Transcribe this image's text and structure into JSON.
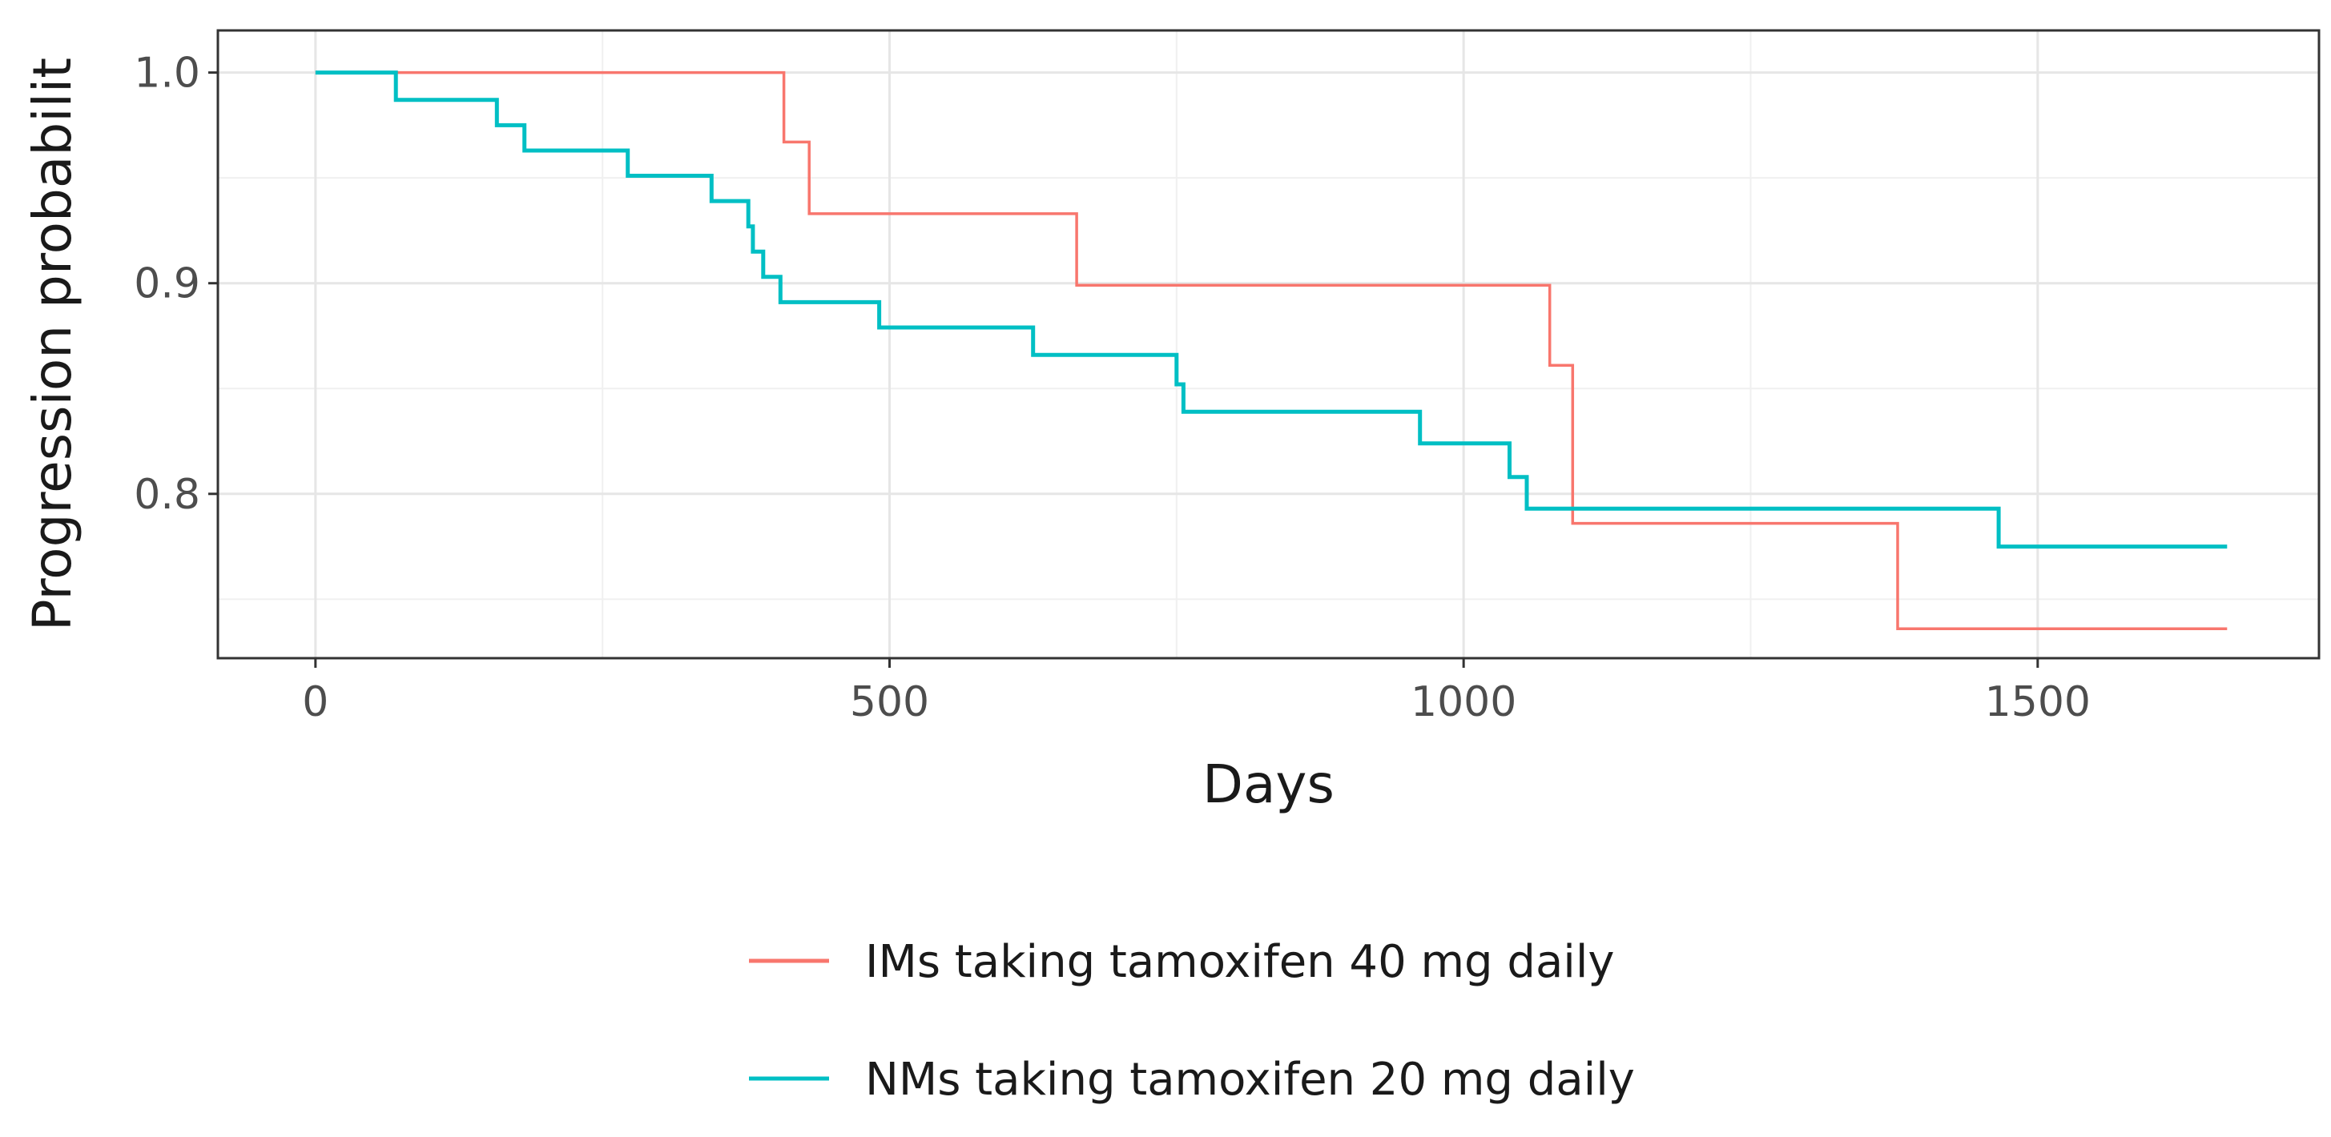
{
  "chart_data": {
    "type": "line",
    "subtype": "step",
    "title": "",
    "xlabel": "Days",
    "ylabel": "Progression probabilit",
    "xlim": [
      -85,
      1745
    ],
    "ylim": [
      0.722,
      1.02
    ],
    "x_ticks": [
      0,
      500,
      1000,
      1500
    ],
    "x_tick_labels": [
      "0",
      "500",
      "1000",
      "1500"
    ],
    "y_ticks": [
      0.8,
      0.9,
      1.0
    ],
    "y_tick_labels": [
      "0.8",
      "0.9",
      "1.0"
    ],
    "y_minor_ticks": [
      0.75,
      0.85,
      0.95
    ],
    "x_minor_ticks": [
      250,
      750,
      1250
    ],
    "grid": true,
    "legend_position": "bottom",
    "series": [
      {
        "name": "IMs taking tamoxifen 40 mg daily",
        "color": "#F8766D",
        "x": [
          0,
          408,
          430,
          663,
          1075,
          1095,
          1378,
          1665
        ],
        "y": [
          1.0,
          0.967,
          0.933,
          0.899,
          0.861,
          0.786,
          0.736,
          0.736
        ]
      },
      {
        "name": "NMs taking tamoxifen 20 mg daily",
        "color": "#00BFC4",
        "x": [
          0,
          70,
          158,
          182,
          272,
          345,
          377,
          381,
          390,
          405,
          491,
          625,
          750,
          756,
          962,
          1040,
          1055,
          1466,
          1665
        ],
        "y": [
          1.0,
          0.987,
          0.975,
          0.963,
          0.951,
          0.939,
          0.927,
          0.915,
          0.903,
          0.891,
          0.879,
          0.866,
          0.852,
          0.839,
          0.824,
          0.808,
          0.793,
          0.775,
          0.775
        ]
      }
    ]
  }
}
